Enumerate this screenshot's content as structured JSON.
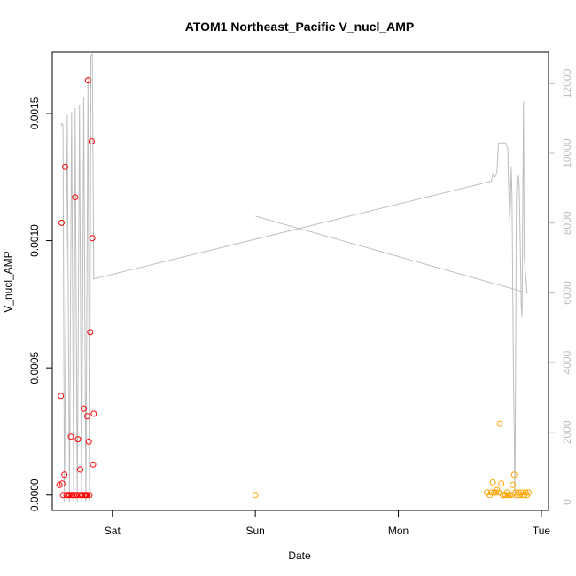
{
  "chart_data": {
    "type": "scatter",
    "title": "ATOM1 Northeast_Pacific V_nucl_AMP",
    "xlabel": "Date",
    "ylabel": "V_nucl_AMP",
    "x_ticks": [
      "Sat",
      "Sun",
      "Mon",
      "Tue"
    ],
    "xlim": [
      -0.42,
      3.05
    ],
    "ylim": [
      -6e-05,
      0.00174
    ],
    "y_ticks": [
      "0.0000",
      "0.0005",
      "0.0010",
      "0.0015"
    ],
    "y_tick_values": [
      0,
      0.0005,
      0.001,
      0.0015
    ],
    "y2_ticks": [
      "0",
      "2000",
      "4000",
      "6000",
      "8000",
      "10000",
      "12000"
    ],
    "y2_tick_values": [
      0,
      2000,
      4000,
      6000,
      8000,
      10000,
      12000
    ],
    "y2lim": [
      -240,
      12900
    ],
    "colors": {
      "series1": "#ff0000",
      "series2": "#ffa500",
      "line": "#bebebe",
      "axis": "#000000",
      "axis_right": "#bdbdbd"
    },
    "series": [
      {
        "marker": "circle-open",
        "color": "#ff0000",
        "points": [
          [
            -0.37,
            4e-05
          ],
          [
            -0.36,
            0.00039
          ],
          [
            -0.355,
            0.00107
          ],
          [
            -0.35,
            4.5e-05
          ],
          [
            -0.345,
            0.0
          ],
          [
            -0.335,
            8e-05
          ],
          [
            -0.33,
            0.00129
          ],
          [
            -0.32,
            0.0
          ],
          [
            -0.31,
            0.0
          ],
          [
            -0.3,
            0.0
          ],
          [
            -0.29,
            0.00023
          ],
          [
            -0.285,
            0.0
          ],
          [
            -0.28,
            0.0
          ],
          [
            -0.27,
            0.0
          ],
          [
            -0.26,
            0.00117
          ],
          [
            -0.255,
            0.0
          ],
          [
            -0.25,
            0.0
          ],
          [
            -0.24,
            0.00022
          ],
          [
            -0.23,
            0.0
          ],
          [
            -0.225,
            0.0001
          ],
          [
            -0.215,
            0.0
          ],
          [
            -0.21,
            0.0
          ],
          [
            -0.2,
            0.00034
          ],
          [
            -0.195,
            0.0
          ],
          [
            -0.19,
            0.0
          ],
          [
            -0.185,
            0.0
          ],
          [
            -0.18,
            0.0
          ],
          [
            -0.175,
            0.00031
          ],
          [
            -0.17,
            0.00163
          ],
          [
            -0.165,
            0.00021
          ],
          [
            -0.16,
            0.0
          ],
          [
            -0.155,
            0.00064
          ],
          [
            -0.145,
            0.00139
          ],
          [
            -0.14,
            0.00101
          ],
          [
            -0.135,
            0.00012
          ],
          [
            -0.13,
            0.00032
          ]
        ]
      },
      {
        "marker": "circle-open",
        "color": "#ffa500",
        "points": [
          [
            1.0,
            0.0
          ],
          [
            2.62,
            1e-05
          ],
          [
            2.64,
            0.0
          ],
          [
            2.65,
            1e-05
          ],
          [
            2.66,
            5e-05
          ],
          [
            2.67,
            1e-05
          ],
          [
            2.68,
            1e-05
          ],
          [
            2.69,
            2e-05
          ],
          [
            2.7,
            1e-05
          ],
          [
            2.71,
            0.00028
          ],
          [
            2.72,
            4.5e-05
          ],
          [
            2.73,
            0.0
          ],
          [
            2.74,
            0.0
          ],
          [
            2.75,
            0.0
          ],
          [
            2.76,
            1e-05
          ],
          [
            2.77,
            0.0
          ],
          [
            2.78,
            0.0
          ],
          [
            2.79,
            0.0
          ],
          [
            2.8,
            4e-05
          ],
          [
            2.81,
            8e-05
          ],
          [
            2.82,
            1e-05
          ],
          [
            2.83,
            0.0
          ],
          [
            2.84,
            1e-05
          ],
          [
            2.85,
            0.0
          ],
          [
            2.86,
            1e-05
          ],
          [
            2.87,
            0.0
          ],
          [
            2.88,
            0.0
          ],
          [
            2.89,
            1e-05
          ],
          [
            2.9,
            0.0
          ],
          [
            2.91,
            1e-05
          ]
        ]
      }
    ],
    "line_series": {
      "axis": "right",
      "color": "#bebebe",
      "points": [
        [
          -0.36,
          10800
        ],
        [
          -0.35,
          10850
        ],
        [
          -0.345,
          10800
        ],
        [
          -0.335,
          0
        ],
        [
          -0.315,
          11100
        ],
        [
          -0.3,
          0
        ],
        [
          -0.285,
          11200
        ],
        [
          -0.27,
          0
        ],
        [
          -0.26,
          11300
        ],
        [
          -0.245,
          0
        ],
        [
          -0.23,
          11400
        ],
        [
          -0.215,
          0
        ],
        [
          -0.2,
          11600
        ],
        [
          -0.185,
          0
        ],
        [
          -0.17,
          12200
        ],
        [
          -0.16,
          0
        ],
        [
          -0.15,
          12800
        ],
        [
          -0.14,
          12850
        ],
        [
          -0.13,
          6400
        ],
        [
          2.65,
          9200
        ],
        [
          2.66,
          9400
        ],
        [
          2.67,
          9300
        ],
        [
          2.68,
          9350
        ],
        [
          2.69,
          9500
        ],
        [
          2.7,
          10300
        ],
        [
          2.75,
          10300
        ],
        [
          2.76,
          10200
        ],
        [
          2.765,
          10150
        ],
        [
          2.77,
          9200
        ],
        [
          2.78,
          8000
        ],
        [
          2.79,
          9600
        ],
        [
          2.795,
          8800
        ],
        [
          2.8,
          6000
        ],
        [
          2.805,
          3500
        ],
        [
          2.81,
          2000
        ],
        [
          2.815,
          100
        ],
        [
          2.82,
          4000
        ],
        [
          2.825,
          8600
        ],
        [
          2.83,
          9300
        ],
        [
          2.84,
          9400
        ],
        [
          2.845,
          9100
        ],
        [
          2.85,
          8000
        ],
        [
          2.86,
          5600
        ],
        [
          2.865,
          5300
        ],
        [
          2.87,
          8800
        ],
        [
          2.875,
          11500
        ],
        [
          2.88,
          7000
        ],
        [
          2.9,
          6000
        ],
        [
          1.0,
          8200
        ]
      ]
    }
  }
}
